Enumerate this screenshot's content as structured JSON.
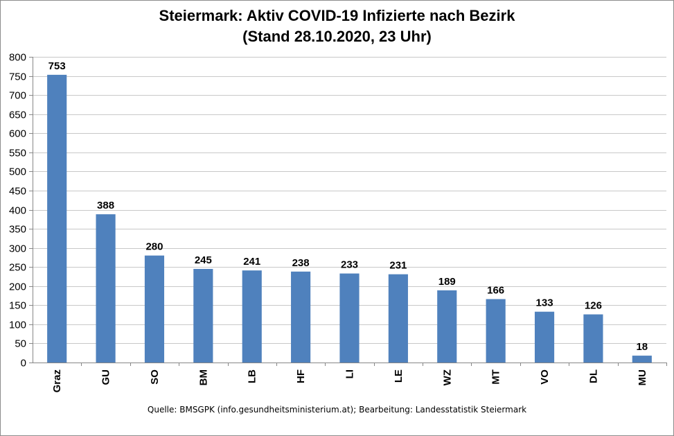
{
  "chart_data": {
    "type": "bar",
    "title": "Steiermark: Aktiv COVID-19 Infizierte nach Bezirk",
    "subtitle": "(Stand 28.10.2020, 23 Uhr)",
    "categories": [
      "Graz",
      "GU",
      "SO",
      "BM",
      "LB",
      "HF",
      "LI",
      "LE",
      "WZ",
      "MT",
      "VO",
      "DL",
      "MU"
    ],
    "values": [
      753,
      388,
      280,
      245,
      241,
      238,
      233,
      231,
      189,
      166,
      133,
      126,
      18
    ],
    "xlabel": "",
    "ylabel": "",
    "ylim": [
      0,
      800
    ],
    "ytick_step": 50,
    "grid": true,
    "legend": "none",
    "bar_color": "#4F81BD",
    "grid_color": "#c8c8c8",
    "source_note": "Quelle: BMSGPK (info.gesundheitsministerium.at); Bearbeitung: Landesstatistik Steiermark"
  }
}
